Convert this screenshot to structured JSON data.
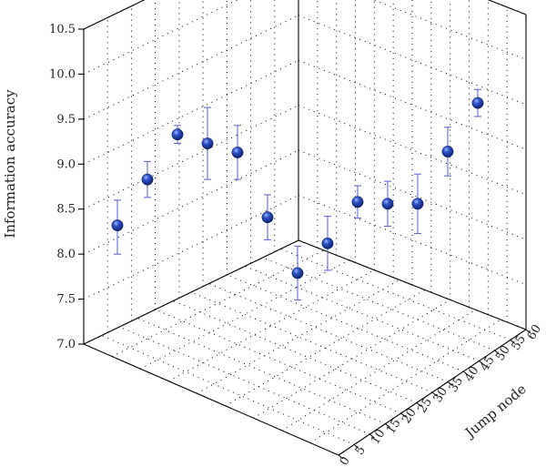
{
  "chart_data": {
    "type": "scatter",
    "title": "",
    "ylabel": "Information accuracy",
    "zlabel": "Jump node",
    "ylim": [
      7.0,
      10.5
    ],
    "y_ticks": [
      "7.0",
      "7.5",
      "8.0",
      "8.5",
      "9.0",
      "9.5",
      "10.0",
      "10.5"
    ],
    "z_ticks": [
      "0",
      "5",
      "10",
      "15",
      "20",
      "25",
      "30",
      "35",
      "40",
      "45",
      "50",
      "55",
      "60"
    ],
    "grid": true,
    "marker_color": "#1f3fa8",
    "errorbar_color": "#5a5ad0",
    "series": [
      {
        "points": [
          {
            "value": 8.38,
            "err_low": 0.32,
            "err_high": 0.28
          },
          {
            "value": 8.87,
            "err_low": 0.2,
            "err_high": 0.2
          },
          {
            "value": 9.35,
            "err_low": 0.1,
            "err_high": 0.1
          },
          {
            "value": 9.25,
            "err_low": 0.4,
            "err_high": 0.4
          },
          {
            "value": 9.15,
            "err_low": 0.3,
            "err_high": 0.3
          },
          {
            "value": 8.45,
            "err_low": 0.25,
            "err_high": 0.25
          },
          {
            "value": 7.85,
            "err_low": 0.3,
            "err_high": 0.3
          },
          {
            "value": 8.18,
            "err_low": 0.3,
            "err_high": 0.3
          },
          {
            "value": 8.62,
            "err_low": 0.18,
            "err_high": 0.18
          },
          {
            "value": 8.6,
            "err_low": 0.25,
            "err_high": 0.25
          },
          {
            "value": 8.6,
            "err_low": 0.33,
            "err_high": 0.33
          },
          {
            "value": 9.18,
            "err_low": 0.27,
            "err_high": 0.27
          },
          {
            "value": 9.72,
            "err_low": 0.15,
            "err_high": 0.15
          }
        ]
      }
    ]
  }
}
